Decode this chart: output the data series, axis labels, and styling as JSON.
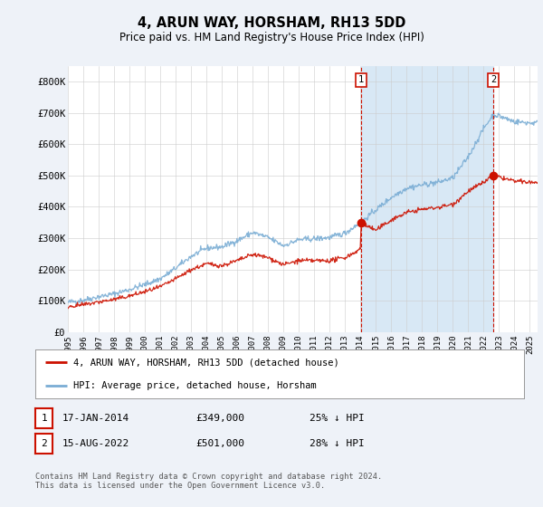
{
  "title": "4, ARUN WAY, HORSHAM, RH13 5DD",
  "subtitle": "Price paid vs. HM Land Registry's House Price Index (HPI)",
  "ylim": [
    0,
    850000
  ],
  "yticks": [
    0,
    100000,
    200000,
    300000,
    400000,
    500000,
    600000,
    700000,
    800000
  ],
  "ytick_labels": [
    "£0",
    "£100K",
    "£200K",
    "£300K",
    "£400K",
    "£500K",
    "£600K",
    "£700K",
    "£800K"
  ],
  "xlim_start": 1995.0,
  "xlim_end": 2025.5,
  "background_color": "#eef2f8",
  "plot_bg_color": "#ffffff",
  "hpi_color": "#7aadd4",
  "price_color": "#cc1100",
  "fill_color": "#d8e8f5",
  "annotation1_date": 2014.04,
  "annotation1_price": 349000,
  "annotation2_date": 2022.62,
  "annotation2_price": 501000,
  "legend_text1": "4, ARUN WAY, HORSHAM, RH13 5DD (detached house)",
  "legend_text2": "HPI: Average price, detached house, Horsham",
  "note1_label": "1",
  "note1_date": "17-JAN-2014",
  "note1_price": "£349,000",
  "note1_pct": "25% ↓ HPI",
  "note2_label": "2",
  "note2_date": "15-AUG-2022",
  "note2_price": "£501,000",
  "note2_pct": "28% ↓ HPI",
  "footer": "Contains HM Land Registry data © Crown copyright and database right 2024.\nThis data is licensed under the Open Government Licence v3.0.",
  "xtick_years": [
    1995,
    1996,
    1997,
    1998,
    1999,
    2000,
    2001,
    2002,
    2003,
    2004,
    2005,
    2006,
    2007,
    2008,
    2009,
    2010,
    2011,
    2012,
    2013,
    2014,
    2015,
    2016,
    2017,
    2018,
    2019,
    2020,
    2021,
    2022,
    2023,
    2024,
    2025
  ]
}
